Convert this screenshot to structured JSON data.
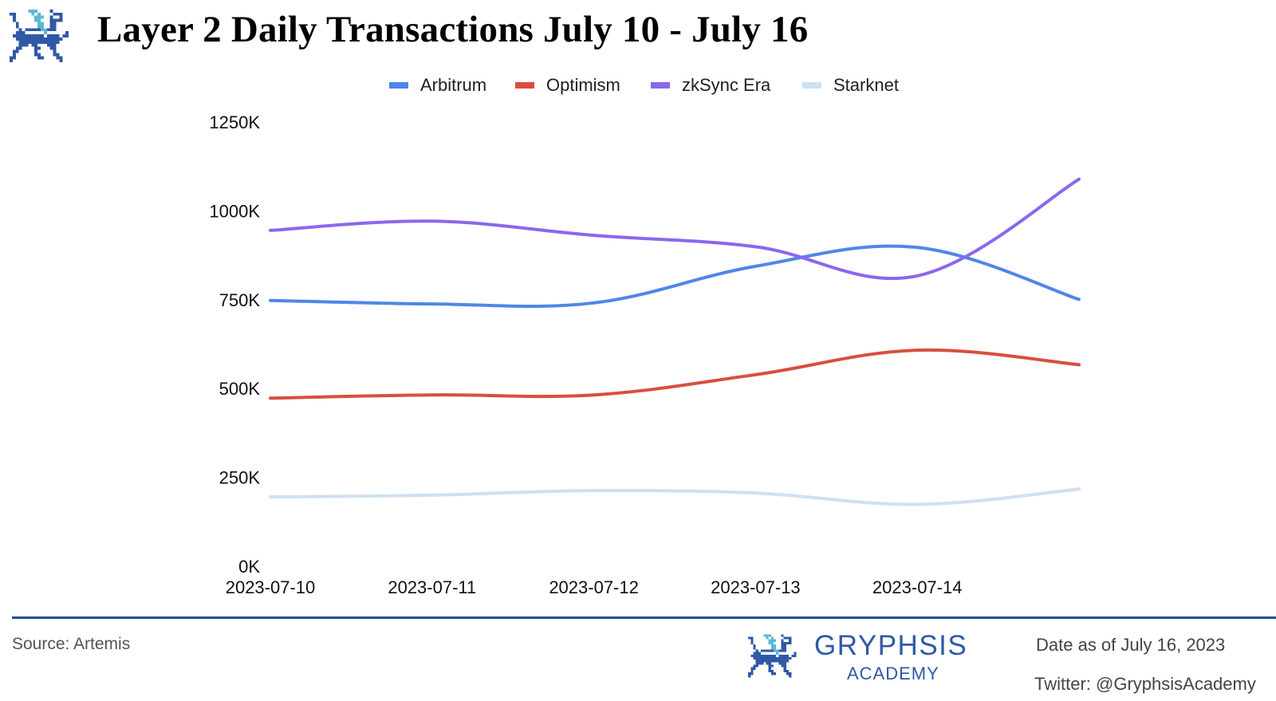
{
  "header": {
    "title": "Layer 2 Daily Transactions July 10 - July 16",
    "logo_icon": "gryphon-pixel-logo"
  },
  "colors": {
    "arbitrum": "#4f86e8",
    "optimism": "#d94e3f",
    "zksync": "#8a67ee",
    "starknet": "#cfe0f1",
    "brand": "#2f59a6",
    "brand_light": "#5bb8d6",
    "rule": "#1f4f9a"
  },
  "chart_data": {
    "type": "line",
    "title": "Layer 2 Daily Transactions July 10 - July 16",
    "xlabel": "",
    "ylabel": "",
    "x": [
      "2023-07-10",
      "2023-07-11",
      "2023-07-12",
      "2023-07-13",
      "2023-07-14",
      "2023-07-15"
    ],
    "x_tick_labels": [
      "2023-07-10",
      "2023-07-11",
      "2023-07-12",
      "2023-07-13",
      "2023-07-14"
    ],
    "y_tick_labels": [
      "0K",
      "250K",
      "500K",
      "750K",
      "1000K",
      "1250K"
    ],
    "y_ticks": [
      0,
      250,
      500,
      750,
      1000,
      1250
    ],
    "ylim": [
      0,
      1250
    ],
    "y_unit": "K",
    "grid": false,
    "smooth": true,
    "legend_position": "top-center",
    "series": [
      {
        "name": "Arbitrum",
        "color_key": "arbitrum",
        "values": [
          748,
          738,
          741,
          844,
          897,
          751
        ]
      },
      {
        "name": "Optimism",
        "color_key": "optimism",
        "values": [
          473,
          482,
          482,
          539,
          608,
          567
        ]
      },
      {
        "name": "zkSync Era",
        "color_key": "zksync",
        "values": [
          945,
          971,
          931,
          899,
          817,
          1089
        ]
      },
      {
        "name": "Starknet",
        "color_key": "starknet",
        "values": [
          195,
          200,
          213,
          206,
          174,
          217
        ]
      }
    ]
  },
  "footer": {
    "source": "Source: Artemis",
    "brand_name": "GRYPHSIS",
    "brand_sub": "ACADEMY",
    "date_note": "Date as of July 16, 2023",
    "twitter": "Twitter: @GryphsisAcademy"
  }
}
